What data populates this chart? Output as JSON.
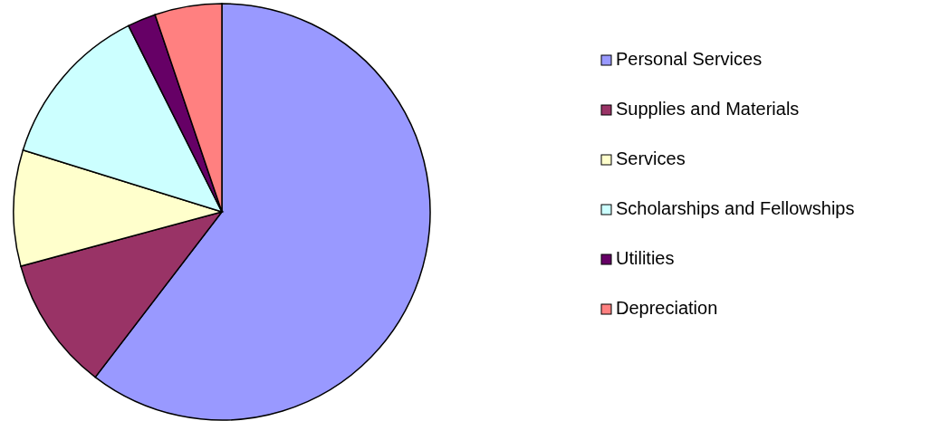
{
  "chart_data": {
    "type": "pie",
    "categories": [
      "Personal Services",
      "Supplies and Materials",
      "Services",
      "Scholarships and Fellowships",
      "Utilities",
      "Depreciation"
    ],
    "values": [
      60.4,
      10.4,
      9.0,
      12.8,
      2.2,
      5.2
    ],
    "colors": [
      "#9999ff",
      "#993366",
      "#ffffcc",
      "#ccffff",
      "#660066",
      "#ff8080"
    ],
    "legend": "right"
  }
}
